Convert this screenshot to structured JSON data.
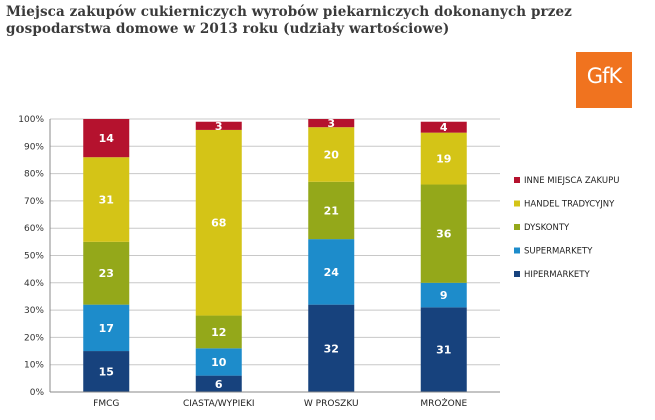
{
  "title": "Miejsca zakupów cukierniczych wyrobów piekarniczych dokonanych przez gospodarstwa domowe w 2013 roku (udziały wartościowe)",
  "logo": {
    "text": "GfK",
    "color": "#f0731f"
  },
  "chart_data": {
    "type": "bar",
    "stacked": true,
    "categories": [
      "FMCG",
      "CIASTA/WYPIEKI",
      "W PROSZKU",
      "MROŻONE"
    ],
    "ylim": [
      0,
      100
    ],
    "yticks": [
      "0%",
      "10%",
      "20%",
      "30%",
      "40%",
      "50%",
      "60%",
      "70%",
      "80%",
      "90%",
      "100%"
    ],
    "grid": true,
    "legend_position": "right",
    "series": [
      {
        "name": "HIPERMARKETY",
        "color": "#17427d",
        "values": [
          15,
          6,
          32,
          31
        ]
      },
      {
        "name": "SUPERMARKETY",
        "color": "#1d8ccb",
        "values": [
          17,
          10,
          24,
          9
        ]
      },
      {
        "name": "DYSKONTY",
        "color": "#94a81a",
        "values": [
          23,
          12,
          21,
          36
        ]
      },
      {
        "name": "HANDEL TRADYCYJNY",
        "color": "#d4c417",
        "values": [
          31,
          68,
          20,
          19
        ]
      },
      {
        "name": "INNE MIEJSCA ZAKUPU",
        "color": "#b5122e",
        "values": [
          14,
          3,
          3,
          4
        ]
      }
    ]
  }
}
